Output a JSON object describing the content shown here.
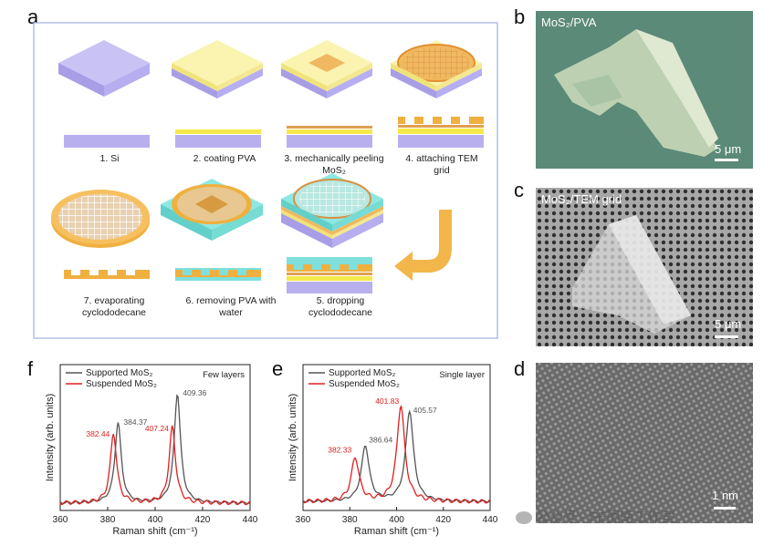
{
  "panels": {
    "a": "a",
    "b": "b",
    "c": "c",
    "d": "d",
    "e": "e",
    "f": "f"
  },
  "schematic": {
    "steps": [
      {
        "num": "1.",
        "label": "Si"
      },
      {
        "num": "2.",
        "label": "coating PVA"
      },
      {
        "num": "3.",
        "label": "mechanically peeling MoS₂"
      },
      {
        "num": "4.",
        "label": "attaching TEM grid"
      },
      {
        "num": "5.",
        "label": "dropping cyclododecane"
      },
      {
        "num": "6.",
        "label": "removing PVA with water"
      },
      {
        "num": "7.",
        "label": "evaporating cyclododecane"
      }
    ]
  },
  "images": {
    "b": {
      "label": "MoS₂/PVA",
      "scale": "5 μm"
    },
    "c": {
      "label": "MoS₂/TEM grid",
      "scale": "5 μm"
    },
    "d": {
      "scale": "1 nm"
    }
  },
  "watermark": "公众号 · FE图南工作室",
  "colors": {
    "supported": "#555555",
    "suspended": "#e02020",
    "box_border": "#9fb0e0",
    "si": "#b8b0ee",
    "pva": "#f6f0a0",
    "mos2": "#f0b860",
    "cyclo": "#7fe0dc",
    "arrow": "#f2b64a"
  },
  "chart_data": [
    {
      "type": "line",
      "panel": "f",
      "title": "Few layers",
      "xlabel": "Raman shift (cm⁻¹)",
      "ylabel": "Intensity (arb. units)",
      "xlim": [
        360,
        440
      ],
      "xticks": [
        360,
        380,
        400,
        420,
        440
      ],
      "legend": [
        "Supported MoS₂",
        "Suspended MoS₂"
      ],
      "series": [
        {
          "name": "Supported MoS₂",
          "peaks": [
            {
              "x": 384.37,
              "label": "384.37"
            },
            {
              "x": 409.36,
              "label": "409.36"
            }
          ]
        },
        {
          "name": "Suspended MoS₂",
          "peaks": [
            {
              "x": 382.44,
              "label": "382.44"
            },
            {
              "x": 407.24,
              "label": "407.24"
            }
          ]
        }
      ]
    },
    {
      "type": "line",
      "panel": "e",
      "title": "Single layer",
      "xlabel": "Raman shift (cm⁻¹)",
      "ylabel": "Intensity (arb. units)",
      "xlim": [
        360,
        440
      ],
      "xticks": [
        360,
        380,
        400,
        420,
        440
      ],
      "legend": [
        "Supported MoS₂",
        "Suspended MoS₂"
      ],
      "series": [
        {
          "name": "Supported MoS₂",
          "peaks": [
            {
              "x": 386.64,
              "label": "386.64"
            },
            {
              "x": 405.57,
              "label": "405.57"
            }
          ]
        },
        {
          "name": "Suspended MoS₂",
          "peaks": [
            {
              "x": 382.33,
              "label": "382.33"
            },
            {
              "x": 401.83,
              "label": "401.83"
            }
          ]
        }
      ]
    }
  ]
}
